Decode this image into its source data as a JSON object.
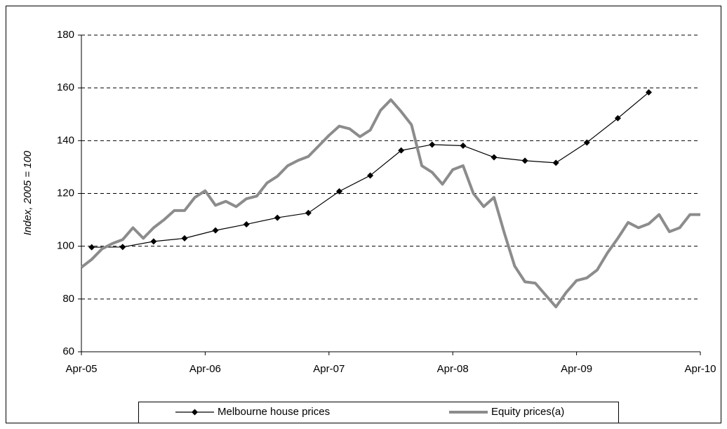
{
  "chart_data": {
    "type": "line",
    "y_label": "Index, 2005 = 100",
    "ylim": [
      60,
      180
    ],
    "yticks": [
      60,
      80,
      100,
      120,
      140,
      160,
      180
    ],
    "xlim": [
      "2005-04",
      "2010-04"
    ],
    "xticks": [
      {
        "value": "2005-04",
        "label": "Apr-05"
      },
      {
        "value": "2006-04",
        "label": "Apr-06"
      },
      {
        "value": "2007-04",
        "label": "Apr-07"
      },
      {
        "value": "2008-04",
        "label": "Apr-08"
      },
      {
        "value": "2009-04",
        "label": "Apr-09"
      },
      {
        "value": "2010-04",
        "label": "Apr-10"
      }
    ],
    "grid": true,
    "legend": "bottom",
    "series": [
      {
        "name": "Melbourne house prices",
        "color": "#000000",
        "markers": true,
        "x": [
          "2005-05",
          "2005-08",
          "2005-11",
          "2006-02",
          "2006-05",
          "2006-08",
          "2006-11",
          "2007-02",
          "2007-05",
          "2007-08",
          "2007-11",
          "2008-02",
          "2008-05",
          "2008-08",
          "2008-11",
          "2009-02",
          "2009-05",
          "2009-08",
          "2009-11"
        ],
        "values": [
          99.6,
          99.7,
          101.8,
          103,
          106,
          108.3,
          110.8,
          112.6,
          120.8,
          126.8,
          136.3,
          138.5,
          138.1,
          133.7,
          132.4,
          131.6,
          139.3,
          148.5,
          158.3
        ]
      },
      {
        "name": "Equity prices(a)",
        "color": "#8c8c8c",
        "markers": false,
        "x": [
          "2005-04",
          "2005-05",
          "2005-06",
          "2005-07",
          "2005-08",
          "2005-09",
          "2005-10",
          "2005-11",
          "2005-12",
          "2006-01",
          "2006-02",
          "2006-03",
          "2006-04",
          "2006-05",
          "2006-06",
          "2006-07",
          "2006-08",
          "2006-09",
          "2006-10",
          "2006-11",
          "2006-12",
          "2007-01",
          "2007-02",
          "2007-03",
          "2007-04",
          "2007-05",
          "2007-06",
          "2007-07",
          "2007-08",
          "2007-09",
          "2007-10",
          "2007-11",
          "2007-12",
          "2008-01",
          "2008-02",
          "2008-03",
          "2008-04",
          "2008-05",
          "2008-06",
          "2008-07",
          "2008-08",
          "2008-09",
          "2008-10",
          "2008-11",
          "2008-12",
          "2009-01",
          "2009-02",
          "2009-03",
          "2009-04",
          "2009-05",
          "2009-06",
          "2009-07",
          "2009-08",
          "2009-09",
          "2009-10",
          "2009-11",
          "2009-12",
          "2010-01",
          "2010-02",
          "2010-03",
          "2010-04"
        ],
        "values": [
          92,
          95,
          99,
          101,
          102.5,
          107,
          103,
          107,
          110,
          113.5,
          113.5,
          118.5,
          121,
          115.5,
          117,
          115,
          118,
          119,
          124,
          126.5,
          130.5,
          132.5,
          134,
          138,
          142,
          145.5,
          144.5,
          141.5,
          144,
          151.5,
          155.5,
          151,
          146,
          130.5,
          128,
          123.5,
          129,
          130.5,
          120,
          115,
          118.5,
          105,
          92.5,
          86.5,
          86,
          81.5,
          77,
          82.5,
          87,
          88,
          91,
          97.5,
          103,
          109,
          107,
          108.5,
          112,
          105.5,
          107,
          112,
          112
        ]
      }
    ]
  }
}
